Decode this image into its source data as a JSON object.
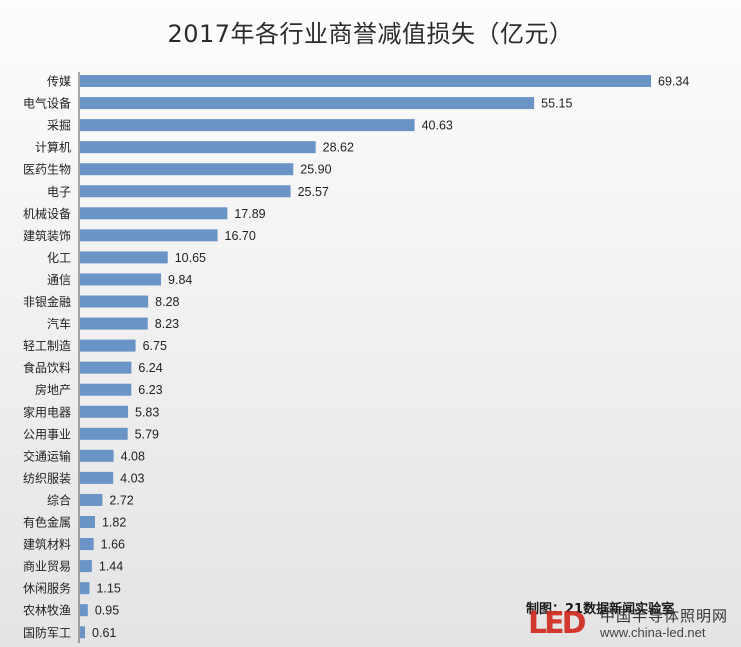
{
  "chart_data": {
    "type": "bar",
    "orientation": "horizontal",
    "title": "2017年各行业商誉减值损失（亿元）",
    "categories": [
      "传媒",
      "电气设备",
      "采掘",
      "计算机",
      "医药生物",
      "电子",
      "机械设备",
      "建筑装饰",
      "化工",
      "通信",
      "非银金融",
      "汽车",
      "轻工制造",
      "食品饮料",
      "房地产",
      "家用电器",
      "公用事业",
      "交通运输",
      "纺织服装",
      "综合",
      "有色金属",
      "建筑材料",
      "商业贸易",
      "休闲服务",
      "农林牧渔",
      "国防军工"
    ],
    "values": [
      69.34,
      55.15,
      40.63,
      28.62,
      25.9,
      25.57,
      17.89,
      16.7,
      10.65,
      9.84,
      8.28,
      8.23,
      6.75,
      6.24,
      6.23,
      5.83,
      5.79,
      4.08,
      4.03,
      2.72,
      1.82,
      1.66,
      1.44,
      1.15,
      0.95,
      0.61
    ],
    "value_labels": [
      "69.34",
      "55.15",
      "40.63",
      "28.62",
      "25.90",
      "25.57",
      "17.89",
      "16.70",
      "10.65",
      "9.84",
      "8.28",
      "8.23",
      "6.75",
      "6.24",
      "6.23",
      "5.83",
      "5.79",
      "4.08",
      "4.03",
      "2.72",
      "1.82",
      "1.66",
      "1.44",
      "1.15",
      "0.95",
      "0.61"
    ],
    "bar_color": "#6a93c6",
    "xlim": [
      0,
      75
    ],
    "grid": false,
    "legend": "none"
  },
  "credit": "制图：21数据新闻实验室",
  "watermark": {
    "logo_text": "LED",
    "name": "中国半导体照明网",
    "url": "www.china-led.net",
    "logo_color": "#d12a1f"
  }
}
